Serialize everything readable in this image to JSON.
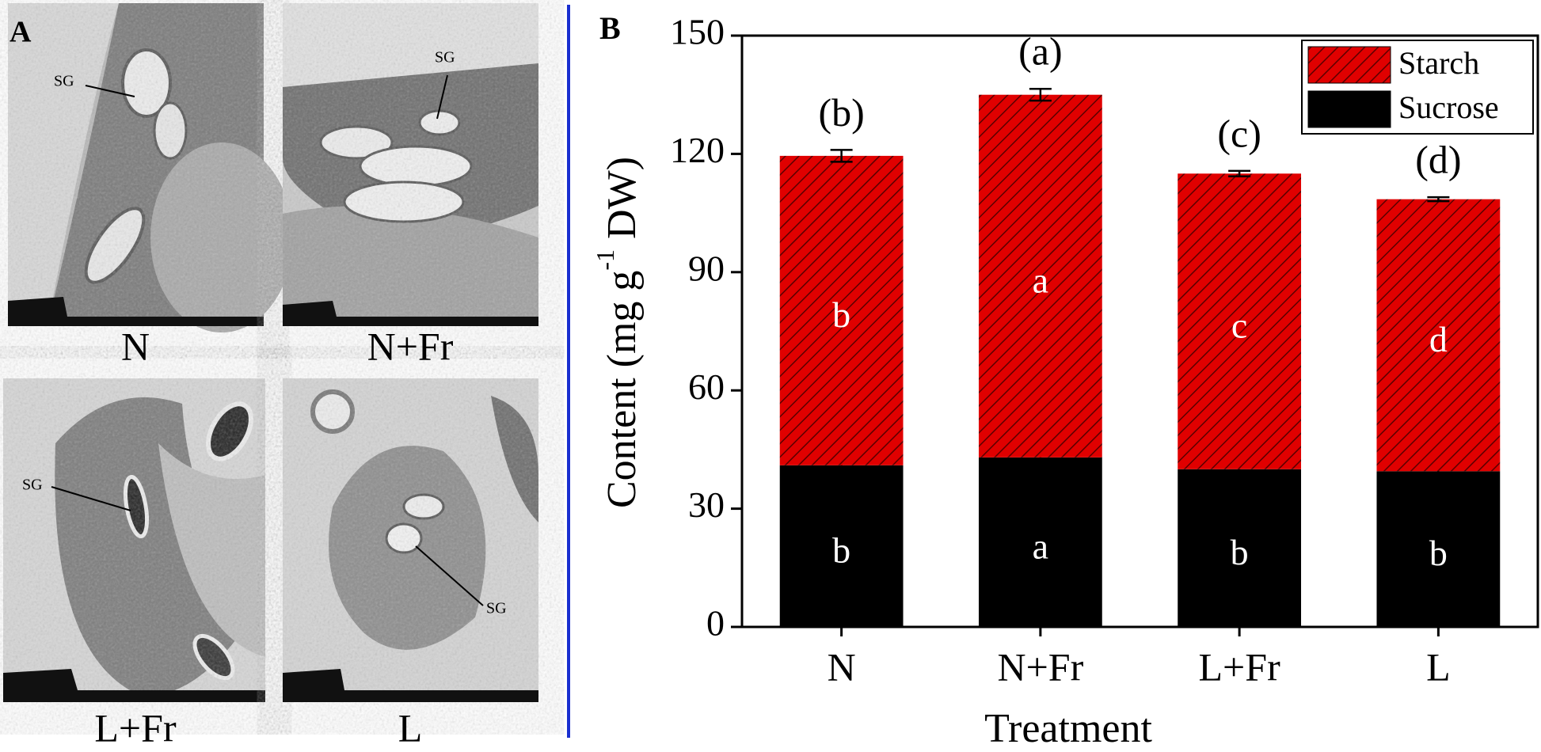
{
  "panel_a": {
    "label": "A",
    "images": [
      {
        "label": "N",
        "annotation": "SG"
      },
      {
        "label": "N+Fr",
        "annotation": "SG"
      },
      {
        "label": "L+Fr",
        "annotation": "SG"
      },
      {
        "label": "L",
        "annotation": "SG"
      }
    ]
  },
  "chart_data": {
    "type": "stacked_bar",
    "panel_label": "B",
    "xlabel": "Treatment",
    "ylabel_parts": [
      "Content (mg g",
      "-1",
      " DW)"
    ],
    "categories": [
      "N",
      "N+Fr",
      "L+Fr",
      "L"
    ],
    "series": [
      {
        "name": "Sucrose",
        "color": "#000000",
        "values": [
          41,
          43,
          40,
          39.5
        ],
        "errors": [
          0.5,
          0.5,
          0.4,
          0.5
        ],
        "letters": [
          "b",
          "a",
          "b",
          "b"
        ]
      },
      {
        "name": "Starch",
        "color": "#e00000",
        "hatch": true,
        "values": [
          78.5,
          92,
          75,
          69
        ],
        "errors": [
          1.5,
          1.5,
          0.7,
          0.5
        ],
        "letters": [
          "b",
          "a",
          "c",
          "d"
        ]
      }
    ],
    "total_letters": [
      "(b)",
      "(a)",
      "(c)",
      "(d)"
    ],
    "ylim": [
      0,
      150
    ],
    "yticks": [
      0,
      30,
      60,
      90,
      120,
      150
    ],
    "legend": "upper-right"
  }
}
